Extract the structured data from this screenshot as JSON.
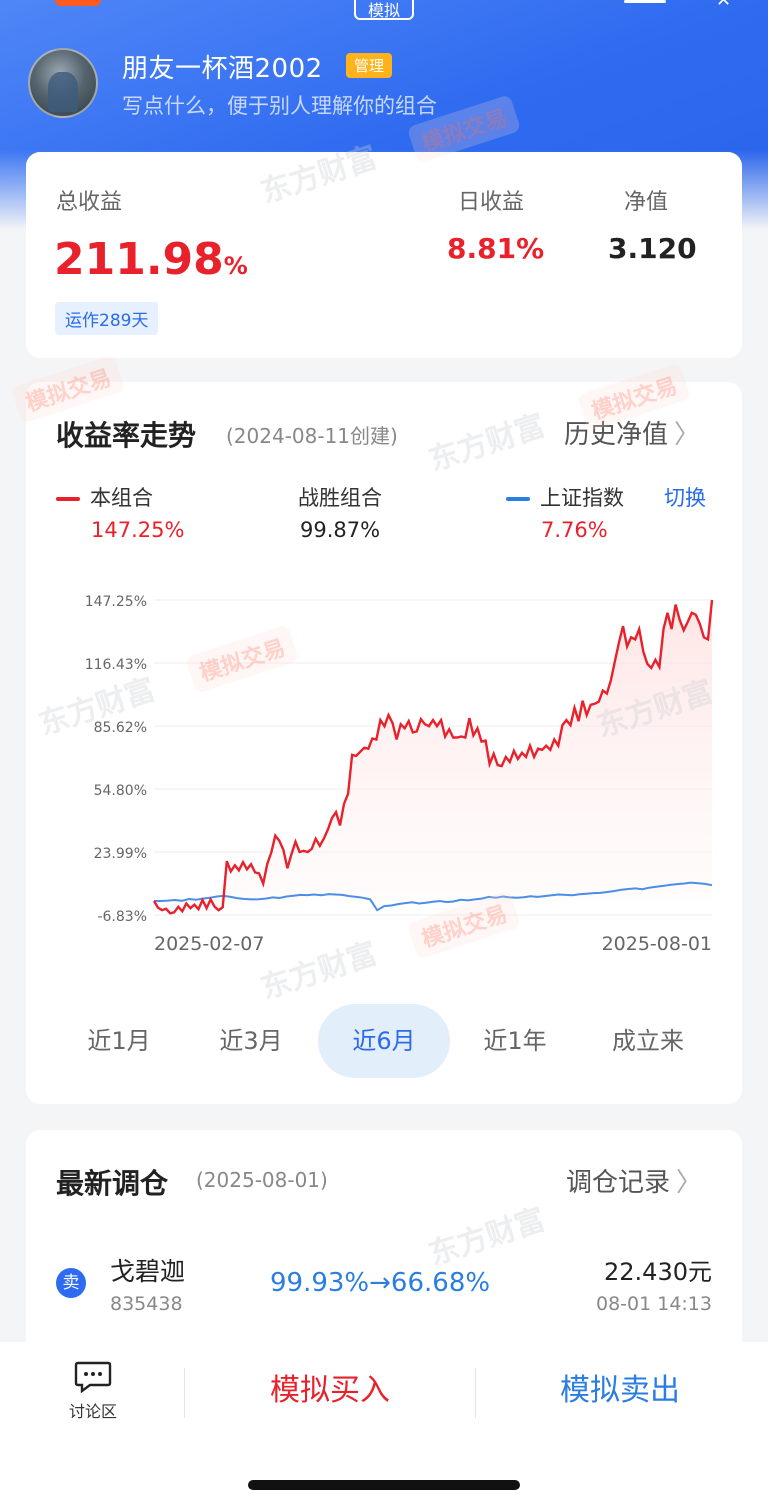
{
  "header": {
    "mode_tag": "模拟",
    "user_name": "朋友一杯酒2002",
    "admin_badge": "管理",
    "description": "写点什么，便于别人理解你的组合"
  },
  "summary": {
    "total_label": "总收益",
    "total_value": "211.98",
    "total_unit": "%",
    "days_badge": "运作289天",
    "daily_label": "日收益",
    "daily_value": "8.81%",
    "nav_label": "净值",
    "nav_value": "3.120"
  },
  "trend": {
    "title": "收益率走势",
    "created": "(2024-08-11创建)",
    "history_link": "历史净值",
    "switch_label": "切换",
    "legend": [
      {
        "name": "本组合",
        "value": "147.25%",
        "color": "#e8212b"
      },
      {
        "name": "战胜组合",
        "value": "99.87%",
        "color": "#222222"
      },
      {
        "name": "上证指数",
        "value": "7.76%",
        "color": "#2a7de1"
      }
    ],
    "periods": [
      "近1月",
      "近3月",
      "近6月",
      "近1年",
      "成立来"
    ],
    "active_period": "近6月"
  },
  "chart_data": {
    "type": "line",
    "ytick_labels": [
      "147.25%",
      "116.43%",
      "85.62%",
      "54.80%",
      "23.99%",
      "-6.83%"
    ],
    "ylim": [
      -6.83,
      147.25
    ],
    "x_start_label": "2025-02-07",
    "x_end_label": "2025-08-01",
    "series": [
      {
        "name": "本组合",
        "color": "#e8212b",
        "values": [
          0.0,
          -3.2,
          -4.5,
          -3.8,
          -6.0,
          -5.5,
          -2.8,
          -5.0,
          -1.2,
          -3.5,
          -1.8,
          -4.0,
          0.5,
          -3.5,
          0.8,
          -2.8,
          -4.5,
          -3.0,
          19.5,
          14.5,
          17.5,
          15.0,
          19.0,
          15.5,
          18.0,
          14.0,
          13.5,
          8.5,
          18.0,
          23.8,
          32.0,
          29.5,
          25.0,
          16.0,
          23.0,
          29.0,
          24.0,
          24.5,
          24.0,
          25.5,
          30.5,
          27.0,
          30.5,
          35.0,
          40.5,
          43.5,
          37.0,
          47.5,
          52.5,
          71.5,
          71.0,
          73.0,
          75.0,
          74.5,
          79.5,
          79.0,
          88.5,
          85.5,
          91.0,
          87.0,
          79.0,
          86.5,
          84.5,
          88.0,
          82.5,
          83.0,
          89.0,
          86.5,
          85.5,
          88.5,
          85.5,
          88.5,
          80.5,
          84.0,
          80.0,
          80.0,
          80.5,
          80.0,
          89.5,
          81.0,
          84.5,
          78.0,
          78.5,
          67.0,
          72.0,
          66.5,
          66.0,
          70.5,
          68.0,
          73.5,
          69.5,
          72.5,
          70.5,
          76.0,
          70.5,
          74.5,
          74.0,
          76.0,
          74.0,
          79.0,
          76.0,
          86.0,
          88.5,
          86.0,
          94.5,
          88.0,
          98.0,
          91.0,
          96.0,
          96.5,
          97.5,
          103.0,
          101.5,
          108.0,
          117.5,
          126.5,
          134.5,
          124.5,
          129.0,
          128.0,
          133.0,
          122.0,
          116.0,
          114.0,
          118.0,
          114.5,
          133.0,
          141.0,
          133.0,
          145.0,
          137.5,
          132.5,
          136.5,
          141.0,
          140.0,
          135.5,
          129.0,
          128.0,
          147.25
        ]
      },
      {
        "name": "上证指数",
        "color": "#2a7de1",
        "values": [
          0.0,
          0.0,
          0.2,
          0.5,
          0.1,
          1.0,
          0.6,
          1.2,
          1.6,
          2.2,
          2.5,
          2.0,
          1.4,
          1.0,
          0.8,
          0.9,
          1.2,
          1.8,
          1.5,
          2.2,
          2.6,
          3.0,
          2.9,
          3.2,
          2.8,
          3.4,
          3.2,
          3.0,
          2.4,
          2.0,
          1.6,
          0.8,
          -4.5,
          -2.5,
          -2.2,
          -1.5,
          -1.0,
          -0.6,
          -1.2,
          -0.8,
          -0.3,
          0.0,
          -0.5,
          -0.2,
          0.6,
          0.3,
          0.8,
          1.2,
          2.0,
          1.6,
          2.2,
          1.8,
          1.6,
          1.9,
          2.3,
          2.0,
          2.4,
          2.8,
          3.2,
          3.0,
          2.8,
          3.3,
          3.6,
          3.9,
          4.0,
          4.4,
          4.9,
          5.5,
          5.9,
          6.2,
          5.8,
          6.5,
          7.0,
          7.4,
          7.9,
          8.3,
          8.6,
          9.0,
          8.7,
          8.4,
          7.76
        ]
      }
    ]
  },
  "rebalance": {
    "title": "最新调仓",
    "date": "(2025-08-01)",
    "link": "调仓记录",
    "item": {
      "action": "卖",
      "name": "戈碧迦",
      "code": "835438",
      "weight_change": "99.93%→66.68%",
      "price": "22.430元",
      "time": "08-01 14:13"
    }
  },
  "bottom": {
    "discuss_label": "讨论区",
    "buy_label": "模拟买入",
    "sell_label": "模拟卖出"
  },
  "watermarks": {
    "brand": "东方财富",
    "mode": "模拟交易"
  }
}
